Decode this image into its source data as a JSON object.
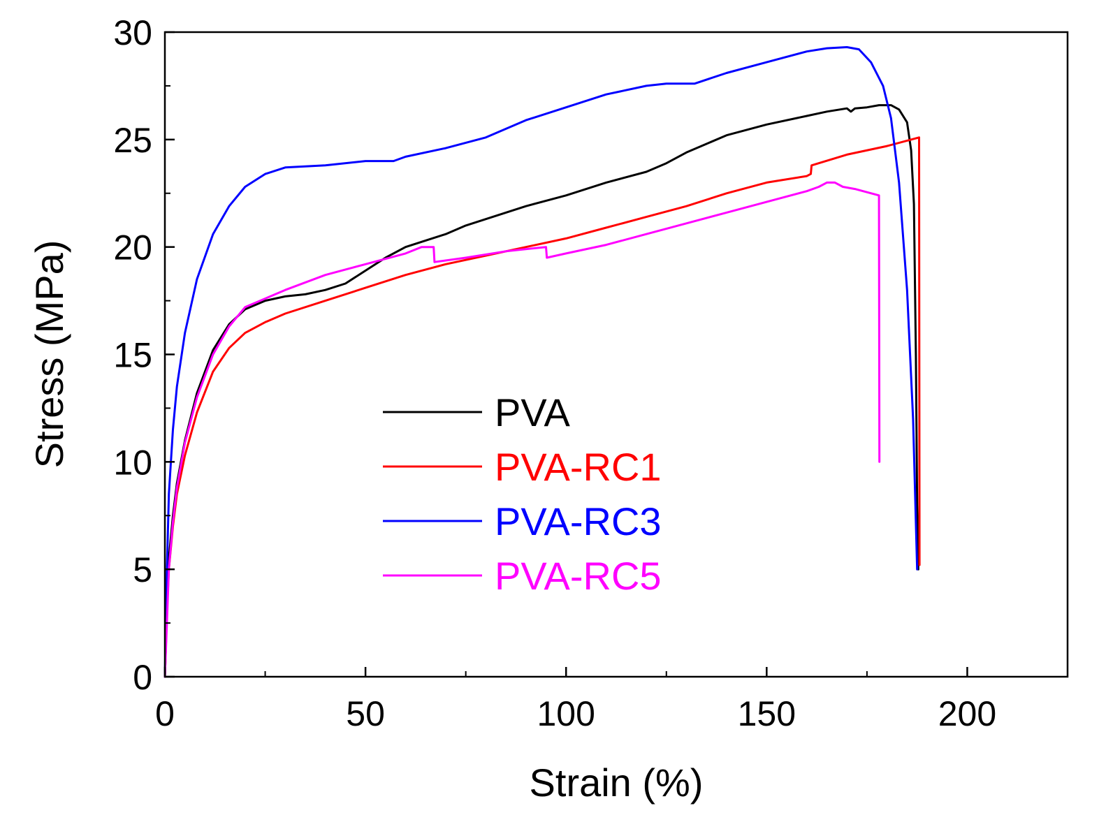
{
  "chart_data": {
    "type": "line",
    "title": "",
    "xlabel": "Strain (%)",
    "ylabel": "Stress (MPa)",
    "xlim": [
      0,
      225
    ],
    "ylim": [
      0,
      30
    ],
    "xticks": [
      0,
      50,
      100,
      150,
      200
    ],
    "yticks": [
      0,
      5,
      10,
      15,
      20,
      25,
      30
    ],
    "x_minor_step": 25,
    "y_minor_step": 2.5,
    "grid": false,
    "legend_position": "center",
    "series": [
      {
        "name": "PVA",
        "color": "#000000",
        "points": [
          [
            0,
            0
          ],
          [
            0.5,
            3
          ],
          [
            1,
            5.5
          ],
          [
            2,
            7.5
          ],
          [
            3,
            9
          ],
          [
            5,
            11
          ],
          [
            8,
            13.2
          ],
          [
            12,
            15.2
          ],
          [
            16,
            16.4
          ],
          [
            20,
            17.1
          ],
          [
            25,
            17.5
          ],
          [
            30,
            17.7
          ],
          [
            35,
            17.8
          ],
          [
            40,
            18
          ],
          [
            45,
            18.3
          ],
          [
            50,
            18.9
          ],
          [
            55,
            19.5
          ],
          [
            60,
            20
          ],
          [
            65,
            20.3
          ],
          [
            70,
            20.6
          ],
          [
            75,
            21
          ],
          [
            80,
            21.3
          ],
          [
            90,
            21.9
          ],
          [
            100,
            22.4
          ],
          [
            110,
            23
          ],
          [
            120,
            23.5
          ],
          [
            125,
            23.9
          ],
          [
            130,
            24.4
          ],
          [
            135,
            24.8
          ],
          [
            140,
            25.2
          ],
          [
            150,
            25.7
          ],
          [
            160,
            26.1
          ],
          [
            165,
            26.3
          ],
          [
            170,
            26.45
          ],
          [
            171,
            26.3
          ],
          [
            172,
            26.45
          ],
          [
            175,
            26.5
          ],
          [
            178,
            26.6
          ],
          [
            181,
            26.6
          ],
          [
            183,
            26.4
          ],
          [
            185,
            25.8
          ],
          [
            186,
            24.5
          ],
          [
            186.7,
            22
          ],
          [
            187.2,
            15
          ],
          [
            187.5,
            8
          ],
          [
            187.8,
            5
          ]
        ]
      },
      {
        "name": "PVA-RC1",
        "color": "#ff0000",
        "points": [
          [
            0,
            0
          ],
          [
            0.5,
            3
          ],
          [
            1,
            5
          ],
          [
            2,
            7
          ],
          [
            3,
            8.5
          ],
          [
            5,
            10.3
          ],
          [
            8,
            12.3
          ],
          [
            12,
            14.2
          ],
          [
            16,
            15.3
          ],
          [
            20,
            16
          ],
          [
            25,
            16.5
          ],
          [
            30,
            16.9
          ],
          [
            40,
            17.5
          ],
          [
            50,
            18.1
          ],
          [
            60,
            18.7
          ],
          [
            70,
            19.2
          ],
          [
            80,
            19.6
          ],
          [
            90,
            20
          ],
          [
            100,
            20.4
          ],
          [
            110,
            20.9
          ],
          [
            120,
            21.4
          ],
          [
            130,
            21.9
          ],
          [
            140,
            22.5
          ],
          [
            150,
            23
          ],
          [
            160,
            23.3
          ],
          [
            161,
            23.4
          ],
          [
            161.2,
            23.8
          ],
          [
            170,
            24.3
          ],
          [
            180,
            24.7
          ],
          [
            188,
            25.1
          ],
          [
            188.1,
            5.2
          ]
        ]
      },
      {
        "name": "PVA-RC3",
        "color": "#0000ff",
        "points": [
          [
            0,
            0
          ],
          [
            0.5,
            5
          ],
          [
            1,
            8.5
          ],
          [
            2,
            11.5
          ],
          [
            3,
            13.5
          ],
          [
            5,
            16
          ],
          [
            8,
            18.5
          ],
          [
            12,
            20.6
          ],
          [
            16,
            21.9
          ],
          [
            20,
            22.8
          ],
          [
            25,
            23.4
          ],
          [
            30,
            23.7
          ],
          [
            40,
            23.8
          ],
          [
            50,
            24
          ],
          [
            57,
            24
          ],
          [
            60,
            24.2
          ],
          [
            70,
            24.6
          ],
          [
            80,
            25.1
          ],
          [
            90,
            25.9
          ],
          [
            100,
            26.5
          ],
          [
            110,
            27.1
          ],
          [
            120,
            27.5
          ],
          [
            125,
            27.6
          ],
          [
            132,
            27.6
          ],
          [
            140,
            28.1
          ],
          [
            150,
            28.6
          ],
          [
            160,
            29.1
          ],
          [
            165,
            29.25
          ],
          [
            170,
            29.3
          ],
          [
            173,
            29.2
          ],
          [
            176,
            28.6
          ],
          [
            179,
            27.5
          ],
          [
            181,
            26
          ],
          [
            183,
            23
          ],
          [
            185,
            18
          ],
          [
            186.5,
            12
          ],
          [
            187.5,
            5
          ]
        ]
      },
      {
        "name": "PVA-RC5",
        "color": "#ff00ff",
        "points": [
          [
            0,
            0
          ],
          [
            0.5,
            2.5
          ],
          [
            1,
            5
          ],
          [
            2,
            7.2
          ],
          [
            3,
            8.8
          ],
          [
            5,
            10.9
          ],
          [
            8,
            13
          ],
          [
            12,
            15
          ],
          [
            16,
            16.3
          ],
          [
            20,
            17.2
          ],
          [
            25,
            17.6
          ],
          [
            30,
            18
          ],
          [
            40,
            18.7
          ],
          [
            50,
            19.2
          ],
          [
            60,
            19.7
          ],
          [
            64,
            20
          ],
          [
            67,
            20
          ],
          [
            67.2,
            19.3
          ],
          [
            75,
            19.5
          ],
          [
            85,
            19.8
          ],
          [
            95,
            20
          ],
          [
            95.2,
            19.5
          ],
          [
            100,
            19.7
          ],
          [
            110,
            20.1
          ],
          [
            120,
            20.6
          ],
          [
            130,
            21.1
          ],
          [
            140,
            21.6
          ],
          [
            150,
            22.1
          ],
          [
            160,
            22.6
          ],
          [
            163,
            22.8
          ],
          [
            165,
            23
          ],
          [
            167,
            23
          ],
          [
            169,
            22.8
          ],
          [
            172,
            22.7
          ],
          [
            178,
            22.4
          ],
          [
            178.1,
            10
          ]
        ]
      }
    ]
  }
}
